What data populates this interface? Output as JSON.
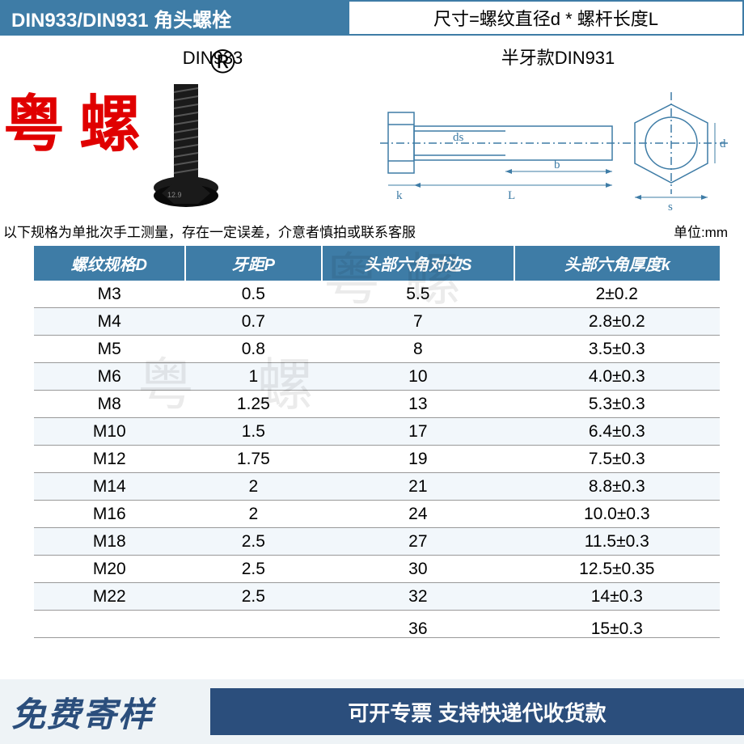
{
  "header": {
    "left_title": "DIN933/DIN931   角头螺栓",
    "right_formula": "尺寸=螺纹直径d * 螺杆长度L"
  },
  "diagrams": {
    "left_label": "DIN933",
    "right_label": "半牙款DIN931",
    "dim_labels": {
      "k": "k",
      "L": "L",
      "b": "b",
      "d": "d",
      "s": "s",
      "ds": "ds"
    }
  },
  "brand": {
    "text": "粤螺",
    "reg": "®"
  },
  "caption": {
    "note": "以下规格为单批次手工测量，存在一定误差，介意者慎拍或联系客服",
    "unit": "单位:mm"
  },
  "table": {
    "columns": [
      "螺纹规格D",
      "牙距P",
      "头部六角对边S",
      "头部六角厚度k"
    ],
    "rows": [
      [
        "M3",
        "0.5",
        "5.5",
        "2±0.2"
      ],
      [
        "M4",
        "0.7",
        "7",
        "2.8±0.2"
      ],
      [
        "M5",
        "0.8",
        "8",
        "3.5±0.3"
      ],
      [
        "M6",
        "1",
        "10",
        "4.0±0.3"
      ],
      [
        "M8",
        "1.25",
        "13",
        "5.3±0.3"
      ],
      [
        "M10",
        "1.5",
        "17",
        "6.4±0.3"
      ],
      [
        "M12",
        "1.75",
        "19",
        "7.5±0.3"
      ],
      [
        "M14",
        "2",
        "21",
        "8.8±0.3"
      ],
      [
        "M16",
        "2",
        "24",
        "10.0±0.3"
      ],
      [
        "M18",
        "2.5",
        "27",
        "11.5±0.3"
      ],
      [
        "M20",
        "2.5",
        "30",
        "12.5±0.35"
      ],
      [
        "M22",
        "2.5",
        "32",
        "14±0.3"
      ]
    ],
    "cut_row": [
      "",
      "",
      "36",
      "15±0.3"
    ]
  },
  "footer": {
    "left": "免费寄样",
    "right": "可开专票 支持快递代收货款"
  },
  "watermarks": {
    "light1": "粤螺",
    "light2": "粤 螺"
  },
  "colors": {
    "brand_blue": "#3e7ca6",
    "footer_blue": "#2b4e7c",
    "brand_red": "#e00000",
    "row_alt": "#f2f7fb",
    "footer_bg": "#eef3f6"
  }
}
